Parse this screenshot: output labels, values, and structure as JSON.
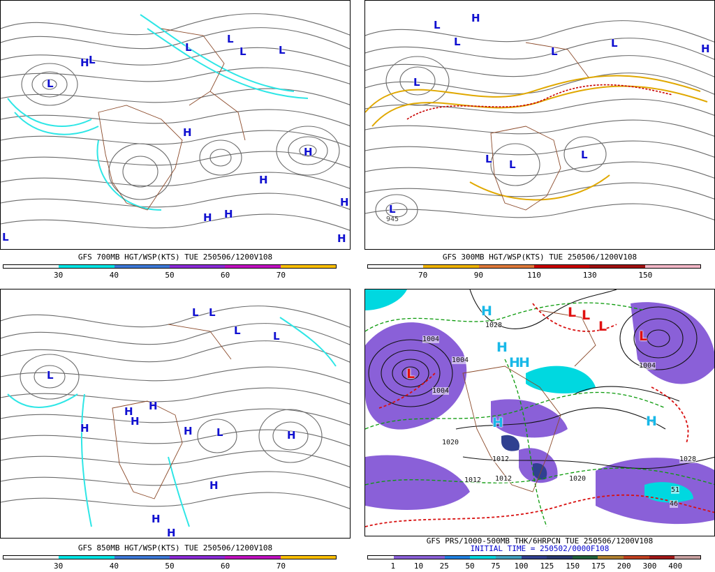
{
  "panels": [
    {
      "id": "p700",
      "caption": "GFS 700MB HGT/WSP(KTS) TUE 250506/1200V108",
      "scale_colors": [
        "#ffffff",
        "#00e5e5",
        "#3c78d8",
        "#8b2bd8",
        "#c010c0",
        "#ffc000"
      ],
      "scale_labels": [
        "30",
        "40",
        "50",
        "60",
        "70"
      ],
      "highs": 9,
      "lows": 7,
      "accent": "#2ee6e6"
    },
    {
      "id": "p300",
      "caption": "GFS 300MB HGT/WSP(KTS) TUE 250506/1200V108",
      "scale_colors": [
        "#ffffff",
        "#f0b400",
        "#e07a3a",
        "#c80000",
        "#a01010",
        "#f4b8c8"
      ],
      "scale_labels": [
        "70",
        "90",
        "110",
        "130",
        "150"
      ],
      "highs": 2,
      "lows": 9,
      "accent": "#e0a800",
      "isobar_label": "945"
    },
    {
      "id": "p850",
      "caption": "GFS 850MB HGT/WSP(KTS) TUE 250506/1200V108",
      "scale_colors": [
        "#ffffff",
        "#00e5e5",
        "#3c78d8",
        "#8b2bd8",
        "#c010c0",
        "#ffc000"
      ],
      "scale_labels": [
        "30",
        "40",
        "50",
        "60",
        "70"
      ],
      "highs": 9,
      "lows": 6,
      "accent": "#2ee6e6"
    },
    {
      "id": "psfc",
      "caption": "GFS PRS/1000-500MB THK/6HRPCN TUE 250506/1200V108",
      "caption2": "INITIAL TIME = 250502/0000F108",
      "scale_colors": [
        "#ffffff",
        "#8a60d8",
        "#8a60d8",
        "#2080e0",
        "#00d8e0",
        "#40a0c0",
        "#304090",
        "#283870",
        "#20603c",
        "#b08030",
        "#c04020",
        "#a01818",
        "#c8a0a0"
      ],
      "scale_labels": [
        "1",
        "10",
        "25",
        "50",
        "75",
        "100",
        "125",
        "150",
        "175",
        "200",
        "300",
        "400"
      ],
      "isobars": [
        "1028",
        "1004",
        "1004",
        "1004",
        "1020",
        "1012",
        "1012",
        "1012",
        "1020",
        "1028",
        "1004",
        "46",
        "51"
      ],
      "highs": 6,
      "lows": 5
    }
  ]
}
